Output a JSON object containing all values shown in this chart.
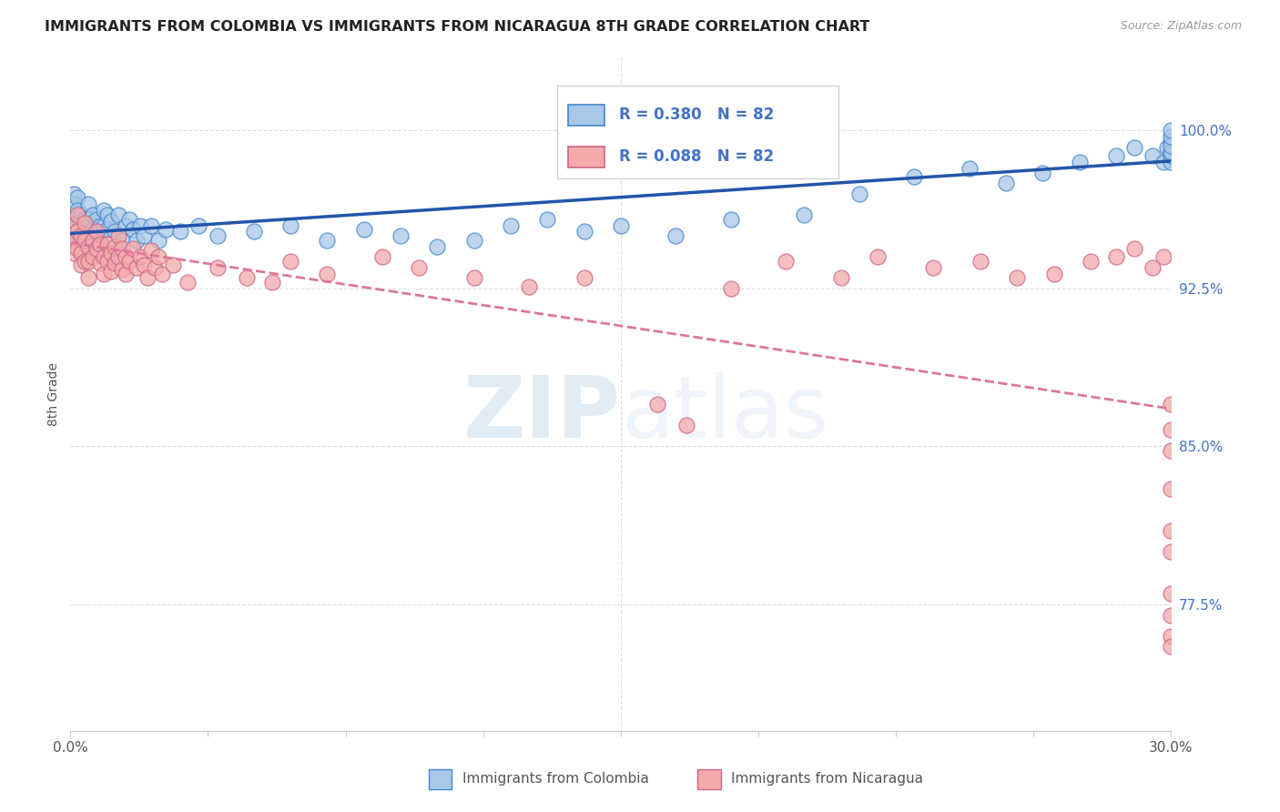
{
  "title": "IMMIGRANTS FROM COLOMBIA VS IMMIGRANTS FROM NICARAGUA 8TH GRADE CORRELATION CHART",
  "source": "Source: ZipAtlas.com",
  "ylabel": "8th Grade",
  "r_colombia": 0.38,
  "n_colombia": 82,
  "r_nicaragua": 0.088,
  "n_nicaragua": 82,
  "color_colombia_fill": "#a8c8e8",
  "color_colombia_edge": "#4488cc",
  "color_nicaragua_fill": "#f4aaaa",
  "color_nicaragua_edge": "#cc6688",
  "color_colombia_line": "#2255aa",
  "color_nicaragua_line": "#dd7799",
  "ytick_labels": [
    "77.5%",
    "85.0%",
    "92.5%",
    "100.0%"
  ],
  "ytick_values": [
    0.775,
    0.85,
    0.925,
    1.0
  ],
  "xmin": 0.0,
  "xmax": 0.3,
  "ymin": 0.715,
  "ymax": 1.035,
  "watermark_zip": "ZIP",
  "watermark_atlas": "atlas",
  "legend_colombia": "Immigrants from Colombia",
  "legend_nicaragua": "Immigrants from Nicaragua",
  "colombia_scatter_x": [
    0.001,
    0.001,
    0.001,
    0.001,
    0.001,
    0.002,
    0.002,
    0.002,
    0.002,
    0.003,
    0.003,
    0.003,
    0.003,
    0.004,
    0.004,
    0.004,
    0.004,
    0.005,
    0.005,
    0.005,
    0.006,
    0.006,
    0.006,
    0.007,
    0.007,
    0.007,
    0.008,
    0.008,
    0.009,
    0.009,
    0.01,
    0.01,
    0.011,
    0.012,
    0.013,
    0.014,
    0.015,
    0.016,
    0.017,
    0.018,
    0.019,
    0.02,
    0.022,
    0.024,
    0.026,
    0.03,
    0.035,
    0.04,
    0.05,
    0.06,
    0.07,
    0.08,
    0.09,
    0.1,
    0.11,
    0.12,
    0.13,
    0.14,
    0.15,
    0.165,
    0.18,
    0.2,
    0.215,
    0.23,
    0.245,
    0.255,
    0.265,
    0.275,
    0.285,
    0.29,
    0.295,
    0.298,
    0.299,
    0.3,
    0.3,
    0.3,
    0.3,
    0.3,
    0.3,
    0.3,
    0.3,
    0.3
  ],
  "colombia_scatter_y": [
    0.97,
    0.965,
    0.958,
    0.952,
    0.96,
    0.968,
    0.962,
    0.955,
    0.95,
    0.96,
    0.955,
    0.948,
    0.942,
    0.958,
    0.952,
    0.946,
    0.94,
    0.965,
    0.958,
    0.95,
    0.96,
    0.953,
    0.946,
    0.958,
    0.95,
    0.943,
    0.955,
    0.948,
    0.962,
    0.955,
    0.96,
    0.953,
    0.957,
    0.952,
    0.96,
    0.948,
    0.955,
    0.958,
    0.953,
    0.948,
    0.955,
    0.95,
    0.955,
    0.948,
    0.953,
    0.952,
    0.955,
    0.95,
    0.952,
    0.955,
    0.948,
    0.953,
    0.95,
    0.945,
    0.948,
    0.955,
    0.958,
    0.952,
    0.955,
    0.95,
    0.958,
    0.96,
    0.97,
    0.978,
    0.982,
    0.975,
    0.98,
    0.985,
    0.988,
    0.992,
    0.988,
    0.985,
    0.992,
    0.995,
    0.99,
    0.988,
    0.985,
    0.988,
    0.99,
    0.993,
    0.997,
    1.0
  ],
  "nicaragua_scatter_x": [
    0.001,
    0.001,
    0.001,
    0.002,
    0.002,
    0.002,
    0.003,
    0.003,
    0.003,
    0.004,
    0.004,
    0.004,
    0.005,
    0.005,
    0.005,
    0.006,
    0.006,
    0.007,
    0.007,
    0.008,
    0.008,
    0.009,
    0.009,
    0.01,
    0.01,
    0.011,
    0.011,
    0.012,
    0.012,
    0.013,
    0.013,
    0.014,
    0.014,
    0.015,
    0.015,
    0.016,
    0.017,
    0.018,
    0.019,
    0.02,
    0.021,
    0.022,
    0.023,
    0.024,
    0.025,
    0.028,
    0.032,
    0.04,
    0.048,
    0.055,
    0.06,
    0.07,
    0.085,
    0.095,
    0.11,
    0.125,
    0.14,
    0.16,
    0.168,
    0.18,
    0.195,
    0.21,
    0.22,
    0.235,
    0.248,
    0.258,
    0.268,
    0.278,
    0.285,
    0.29,
    0.295,
    0.298,
    0.3,
    0.3,
    0.3,
    0.3,
    0.3,
    0.3,
    0.3,
    0.3,
    0.3,
    0.3
  ],
  "nicaragua_scatter_y": [
    0.955,
    0.948,
    0.942,
    0.96,
    0.952,
    0.944,
    0.95,
    0.942,
    0.936,
    0.956,
    0.948,
    0.938,
    0.945,
    0.938,
    0.93,
    0.948,
    0.94,
    0.952,
    0.944,
    0.946,
    0.937,
    0.94,
    0.932,
    0.946,
    0.938,
    0.942,
    0.933,
    0.945,
    0.937,
    0.95,
    0.94,
    0.944,
    0.934,
    0.94,
    0.932,
    0.938,
    0.944,
    0.935,
    0.94,
    0.936,
    0.93,
    0.943,
    0.935,
    0.94,
    0.932,
    0.936,
    0.928,
    0.935,
    0.93,
    0.928,
    0.938,
    0.932,
    0.94,
    0.935,
    0.93,
    0.926,
    0.93,
    0.87,
    0.86,
    0.925,
    0.938,
    0.93,
    0.94,
    0.935,
    0.938,
    0.93,
    0.932,
    0.938,
    0.94,
    0.944,
    0.935,
    0.94,
    0.8,
    0.78,
    0.76,
    0.77,
    0.81,
    0.83,
    0.848,
    0.858,
    0.87,
    0.755
  ]
}
